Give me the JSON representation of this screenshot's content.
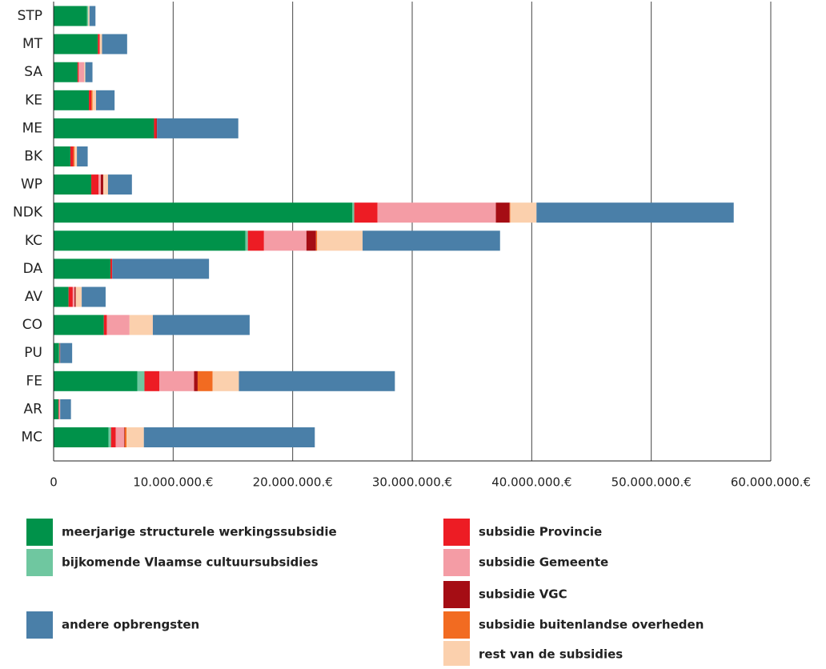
{
  "chart_data": {
    "type": "stacked-bar-horizontal",
    "categories": [
      "STP",
      "MT",
      "SA",
      "KE",
      "ME",
      "BK",
      "WP",
      "NDK",
      "KC",
      "DA",
      "AV",
      "CO",
      "PU",
      "FE",
      "AR",
      "MC"
    ],
    "series": [
      {
        "name": "meerjarige structurele werkingssubsidie",
        "color": "#00924a",
        "values": [
          2800000,
          3700000,
          2000000,
          2950000,
          8400000,
          1400000,
          3150000,
          25000000,
          16050000,
          4750000,
          1250000,
          4200000,
          450000,
          7000000,
          400000,
          4600000
        ]
      },
      {
        "name": "bijkomende Vlaamse cultuursubsidies",
        "color": "#6fc7a0",
        "values": [
          100000,
          0,
          0,
          0,
          0,
          0,
          0,
          150000,
          200000,
          0,
          0,
          0,
          50000,
          600000,
          0,
          200000
        ]
      },
      {
        "name": "subsidie Provincie",
        "color": "#ed1c24",
        "values": [
          0,
          150000,
          100000,
          200000,
          200000,
          250000,
          600000,
          1950000,
          1350000,
          150000,
          350000,
          250000,
          50000,
          1250000,
          50000,
          400000
        ]
      },
      {
        "name": "subsidie Gemeente",
        "color": "#f49ca5",
        "values": [
          0,
          0,
          450000,
          0,
          0,
          0,
          200000,
          9900000,
          3550000,
          0,
          150000,
          1900000,
          0,
          2900000,
          100000,
          700000
        ]
      },
      {
        "name": "subsidie VGC",
        "color": "#a50d14",
        "values": [
          0,
          0,
          0,
          0,
          50000,
          0,
          200000,
          1150000,
          800000,
          0,
          100000,
          0,
          0,
          300000,
          0,
          50000
        ]
      },
      {
        "name": "subsidie buitenlandse overheden",
        "color": "#f26b21",
        "values": [
          0,
          0,
          0,
          100000,
          0,
          100000,
          0,
          50000,
          100000,
          0,
          0,
          0,
          0,
          1250000,
          0,
          150000
        ]
      },
      {
        "name": "rest van de subsidies",
        "color": "#fbd0ad",
        "values": [
          100000,
          200000,
          100000,
          300000,
          0,
          200000,
          400000,
          2200000,
          3800000,
          0,
          500000,
          1950000,
          0,
          2200000,
          0,
          1450000
        ]
      },
      {
        "name": "andere opbrengsten",
        "color": "#4a7fa8",
        "values": [
          500000,
          2100000,
          600000,
          1550000,
          6800000,
          900000,
          2000000,
          16500000,
          11500000,
          8100000,
          2000000,
          8100000,
          1000000,
          13050000,
          900000,
          14300000
        ]
      }
    ],
    "xlim": [
      0,
      60000000
    ],
    "xticks": [
      0,
      {
        "value": 10000000,
        "label": "10.000.000.€"
      },
      {
        "value": 20000000,
        "label": "20.000.000.€"
      },
      {
        "value": 30000000,
        "label": "30.000.000.€"
      },
      {
        "value": 40000000,
        "label": "40.000.000.€"
      },
      {
        "value": 50000000,
        "label": "50.000.000.€"
      },
      {
        "value": 60000000,
        "label": "60.000.000.€"
      }
    ],
    "grid": true
  }
}
